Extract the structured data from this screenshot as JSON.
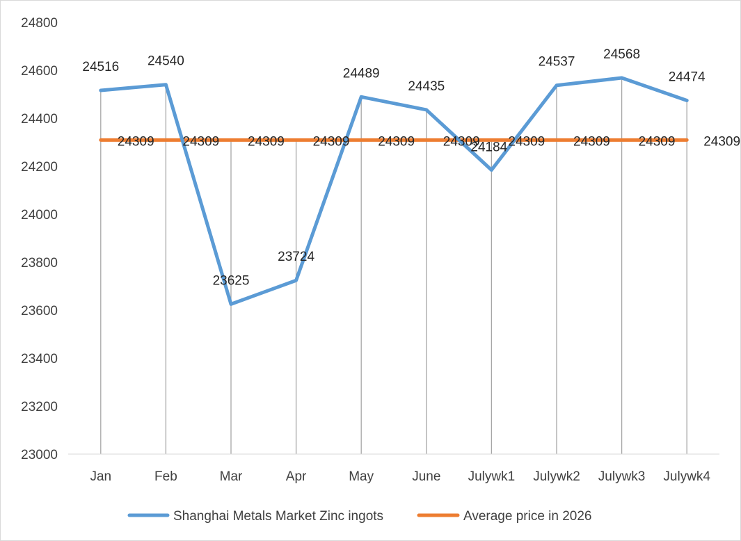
{
  "chart_data": {
    "type": "line",
    "categories": [
      "Jan",
      "Feb",
      "Mar",
      "Apr",
      "May",
      "June",
      "Julywk1",
      "Julywk2",
      "Julywk3",
      "Julywk4"
    ],
    "series": [
      {
        "name": "Shanghai Metals Market Zinc ingots",
        "values": [
          24516,
          24540,
          23625,
          23724,
          24489,
          24435,
          24184,
          24537,
          24568,
          24474
        ],
        "color": "#5b9bd5"
      },
      {
        "name": "Average price in 2026",
        "values": [
          24309,
          24309,
          24309,
          24309,
          24309,
          24309,
          24309,
          24309,
          24309,
          24309
        ],
        "color": "#ed7d31"
      }
    ],
    "yticks": [
      "23000",
      "23200",
      "23400",
      "23600",
      "23800",
      "24000",
      "24200",
      "24400",
      "24600",
      "24800"
    ],
    "ylim": [
      23000,
      24800
    ],
    "grid": "vertical drop lines",
    "legend_position": "bottom"
  }
}
